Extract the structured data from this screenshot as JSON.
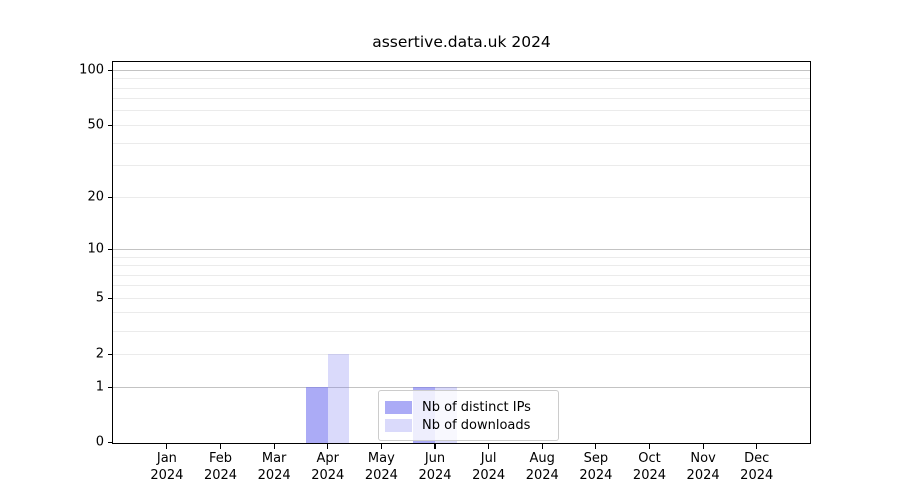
{
  "title": "assertive.data.uk 2024",
  "legend": {
    "items": [
      {
        "label": "Nb of distinct IPs",
        "swatch": "rgba(120,120,240,0.62)"
      },
      {
        "label": "Nb of downloads",
        "swatch": "rgba(120,120,240,0.27)"
      }
    ]
  },
  "chart_data": {
    "type": "bar",
    "title": "assertive.data.uk 2024",
    "categories": [
      "Jan",
      "Feb",
      "Mar",
      "Apr",
      "May",
      "Jun",
      "Jul",
      "Aug",
      "Sep",
      "Oct",
      "Nov",
      "Dec"
    ],
    "x_sublabel_year": "2024",
    "series": [
      {
        "name": "Nb of distinct IPs",
        "color": "rgba(120,120,240,0.62)",
        "values": [
          0,
          0,
          0,
          1,
          0,
          1,
          0,
          0,
          0,
          0,
          0,
          0
        ]
      },
      {
        "name": "Nb of downloads",
        "color": "rgba(120,120,240,0.27)",
        "values": [
          0,
          0,
          0,
          2,
          0,
          1,
          0,
          0,
          0,
          0,
          0,
          0
        ]
      }
    ],
    "ylabel": "",
    "xlabel": "",
    "scale": "log(1+y)",
    "ylim": [
      0,
      108
    ],
    "ytick_values": [
      100,
      50,
      20,
      10,
      5,
      2,
      1,
      0
    ],
    "ytick_major_grid": [
      1,
      10,
      100
    ],
    "ytick_minor_grid": [
      2,
      3,
      4,
      5,
      6,
      7,
      8,
      9,
      20,
      30,
      40,
      50,
      60,
      70,
      80,
      90
    ],
    "grid": true,
    "legend_position": "lower center",
    "colors": {
      "major_grid": "#c3c3c3",
      "minor_grid": "#ebebeb",
      "spine": "#000000"
    }
  }
}
